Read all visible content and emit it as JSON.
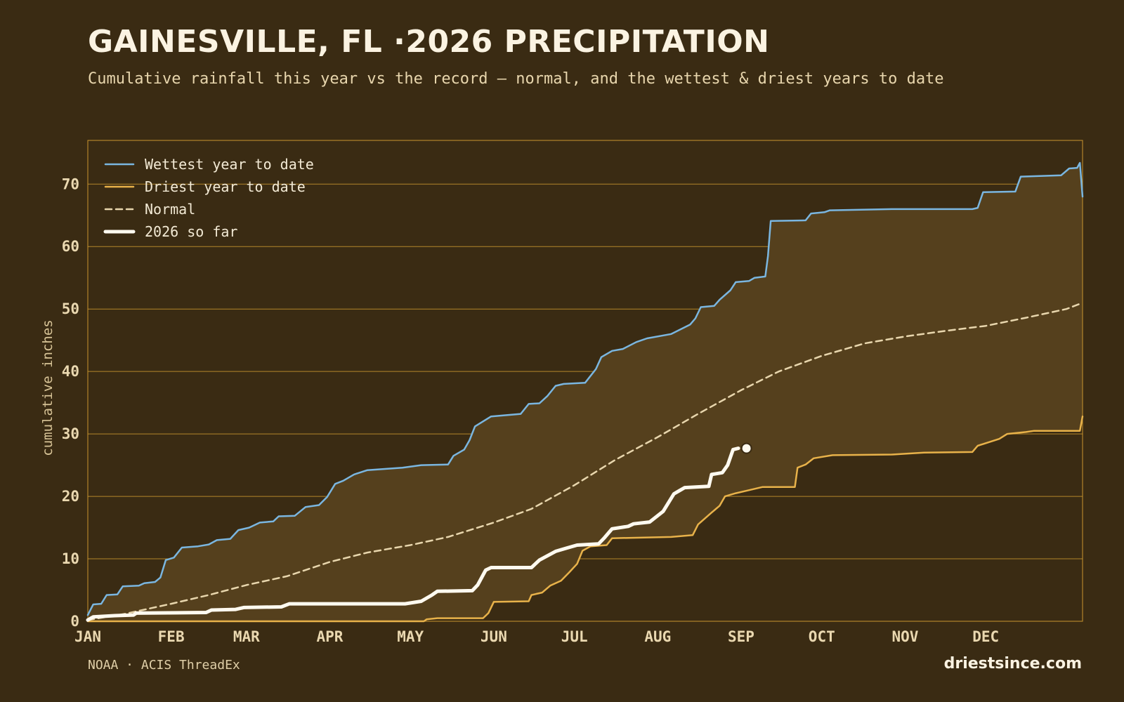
{
  "header": {
    "title": "GAINESVILLE, FL ·2026 PRECIPITATION",
    "subtitle": "Cumulative rainfall this year vs the record — normal, and the wettest & driest years to date"
  },
  "footer": {
    "source": "NOAA · ACIS ThreadEx",
    "brand": "driestsince.com"
  },
  "colors": {
    "background": "#3a2b13",
    "wettest": "#7ab6e0",
    "driest": "#e8b24a",
    "normal": "#e8d6ad",
    "current": "#fffaf0",
    "band_fill": "#55401d",
    "grid": "#c9962f"
  },
  "chart_data": {
    "type": "line",
    "ylabel": "cumulative inches",
    "xlabel": "",
    "ylim": [
      0,
      77
    ],
    "yticks": [
      0,
      10,
      20,
      30,
      40,
      50,
      60,
      70
    ],
    "x_unit": "day of year",
    "x_range": [
      1,
      366
    ],
    "month_ticks": [
      {
        "label": "JAN",
        "day": 1
      },
      {
        "label": "FEB",
        "day": 32
      },
      {
        "label": "MAR",
        "day": 60
      },
      {
        "label": "APR",
        "day": 91
      },
      {
        "label": "MAY",
        "day": 121
      },
      {
        "label": "JUN",
        "day": 152
      },
      {
        "label": "JUL",
        "day": 182
      },
      {
        "label": "AUG",
        "day": 213
      },
      {
        "label": "SEP",
        "day": 244
      },
      {
        "label": "OCT",
        "day": 274
      },
      {
        "label": "NOV",
        "day": 305
      },
      {
        "label": "DEC",
        "day": 335
      }
    ],
    "legend_position": "top-left",
    "grid": true,
    "fill_between": [
      "Driest year to date",
      "Wettest year to date"
    ],
    "series": [
      {
        "name": "Wettest year to date",
        "style": "solid",
        "points": [
          [
            1,
            1
          ],
          [
            3,
            2.7
          ],
          [
            6,
            2.8
          ],
          [
            8,
            4.2
          ],
          [
            12,
            4.3
          ],
          [
            14,
            5.6
          ],
          [
            20,
            5.7
          ],
          [
            22,
            6.1
          ],
          [
            26,
            6.3
          ],
          [
            28,
            7
          ],
          [
            30,
            9.8
          ],
          [
            33,
            10.2
          ],
          [
            36,
            11.8
          ],
          [
            42,
            12
          ],
          [
            46,
            12.3
          ],
          [
            49,
            13
          ],
          [
            54,
            13.2
          ],
          [
            57,
            14.6
          ],
          [
            61,
            15
          ],
          [
            65,
            15.8
          ],
          [
            70,
            16
          ],
          [
            72,
            16.8
          ],
          [
            78,
            16.9
          ],
          [
            82,
            18.3
          ],
          [
            87,
            18.6
          ],
          [
            90,
            19.9
          ],
          [
            93,
            22
          ],
          [
            96,
            22.5
          ],
          [
            100,
            23.5
          ],
          [
            105,
            24.2
          ],
          [
            118,
            24.6
          ],
          [
            125,
            25
          ],
          [
            135,
            25.1
          ],
          [
            137,
            26.5
          ],
          [
            141,
            27.5
          ],
          [
            143,
            29
          ],
          [
            145,
            31.2
          ],
          [
            151,
            32.8
          ],
          [
            162,
            33.2
          ],
          [
            165,
            34.8
          ],
          [
            169,
            34.9
          ],
          [
            172,
            36.1
          ],
          [
            175,
            37.7
          ],
          [
            178,
            38
          ],
          [
            186,
            38.2
          ],
          [
            190,
            40.4
          ],
          [
            192,
            42.3
          ],
          [
            196,
            43.3
          ],
          [
            200,
            43.6
          ],
          [
            205,
            44.7
          ],
          [
            209,
            45.3
          ],
          [
            218,
            46
          ],
          [
            225,
            47.5
          ],
          [
            227,
            48.5
          ],
          [
            229,
            50.3
          ],
          [
            234,
            50.5
          ],
          [
            236,
            51.5
          ],
          [
            240,
            53
          ],
          [
            242,
            54.3
          ],
          [
            247,
            54.5
          ],
          [
            249,
            55
          ],
          [
            253,
            55.2
          ],
          [
            254,
            58.5
          ],
          [
            255,
            64.1
          ],
          [
            268,
            64.2
          ],
          [
            270,
            65.3
          ],
          [
            275,
            65.5
          ],
          [
            277,
            65.8
          ],
          [
            300,
            66
          ],
          [
            330,
            66
          ],
          [
            332,
            66.2
          ],
          [
            334,
            68.7
          ],
          [
            346,
            68.8
          ],
          [
            348,
            71.2
          ],
          [
            363,
            71.4
          ],
          [
            366,
            72.5
          ],
          [
            369,
            72.6
          ],
          [
            370,
            73.4
          ],
          [
            371,
            68
          ]
        ]
      },
      {
        "name": "Driest year to date",
        "style": "solid",
        "points": [
          [
            1,
            0
          ],
          [
            126,
            0
          ],
          [
            127,
            0.3
          ],
          [
            131,
            0.5
          ],
          [
            148,
            0.5
          ],
          [
            150,
            1.3
          ],
          [
            152,
            3.1
          ],
          [
            165,
            3.2
          ],
          [
            166,
            4.2
          ],
          [
            170,
            4.6
          ],
          [
            173,
            5.7
          ],
          [
            177,
            6.5
          ],
          [
            180,
            7.8
          ],
          [
            183,
            9.2
          ],
          [
            185,
            11.3
          ],
          [
            188,
            12
          ],
          [
            194,
            12.2
          ],
          [
            196,
            13.3
          ],
          [
            218,
            13.5
          ],
          [
            226,
            13.8
          ],
          [
            228,
            15.5
          ],
          [
            233,
            17.4
          ],
          [
            236,
            18.5
          ],
          [
            238,
            20
          ],
          [
            242,
            20.5
          ],
          [
            247,
            21
          ],
          [
            252,
            21.5
          ],
          [
            264,
            21.5
          ],
          [
            265,
            24.6
          ],
          [
            268,
            25.1
          ],
          [
            271,
            26.1
          ],
          [
            278,
            26.6
          ],
          [
            300,
            26.7
          ],
          [
            312,
            27
          ],
          [
            330,
            27.1
          ],
          [
            332,
            28.1
          ],
          [
            340,
            29.2
          ],
          [
            343,
            30
          ],
          [
            350,
            30.3
          ],
          [
            353,
            30.5
          ],
          [
            370,
            30.5
          ],
          [
            371,
            32.8
          ]
        ]
      },
      {
        "name": "Normal",
        "style": "dashed",
        "points": [
          [
            1,
            0.2
          ],
          [
            15,
            1.2
          ],
          [
            32,
            2.8
          ],
          [
            46,
            4.2
          ],
          [
            60,
            5.8
          ],
          [
            75,
            7.2
          ],
          [
            91,
            9.5
          ],
          [
            105,
            11
          ],
          [
            121,
            12.2
          ],
          [
            135,
            13.5
          ],
          [
            152,
            15.8
          ],
          [
            166,
            18
          ],
          [
            182,
            21.8
          ],
          [
            197,
            25.8
          ],
          [
            213,
            29.5
          ],
          [
            228,
            33.2
          ],
          [
            244,
            37
          ],
          [
            258,
            40
          ],
          [
            274,
            42.5
          ],
          [
            290,
            44.5
          ],
          [
            305,
            45.6
          ],
          [
            320,
            46.5
          ],
          [
            335,
            47.3
          ],
          [
            350,
            48.6
          ],
          [
            365,
            50
          ],
          [
            371,
            51
          ]
        ]
      },
      {
        "name": "2026 so far",
        "style": "bold",
        "points": [
          [
            1,
            0.2
          ],
          [
            3,
            0.7
          ],
          [
            11,
            0.9
          ],
          [
            18,
            1.0
          ],
          [
            19,
            1.3
          ],
          [
            45,
            1.4
          ],
          [
            47,
            1.8
          ],
          [
            56,
            1.9
          ],
          [
            59,
            2.2
          ],
          [
            73,
            2.3
          ],
          [
            76,
            2.8
          ],
          [
            119,
            2.8
          ],
          [
            125,
            3.2
          ],
          [
            129,
            4.2
          ],
          [
            131,
            4.8
          ],
          [
            144,
            4.9
          ],
          [
            146,
            5.8
          ],
          [
            149,
            8.2
          ],
          [
            151,
            8.6
          ],
          [
            166,
            8.6
          ],
          [
            169,
            9.8
          ],
          [
            175,
            11.2
          ],
          [
            179,
            11.7
          ],
          [
            183,
            12.2
          ],
          [
            191,
            12.4
          ],
          [
            193,
            13.3
          ],
          [
            196,
            14.8
          ],
          [
            202,
            15.2
          ],
          [
            204,
            15.6
          ],
          [
            210,
            15.9
          ],
          [
            215,
            17.6
          ],
          [
            219,
            20.4
          ],
          [
            221,
            20.9
          ],
          [
            223,
            21.4
          ],
          [
            232,
            21.6
          ],
          [
            233,
            23.5
          ],
          [
            237,
            23.8
          ],
          [
            239,
            25
          ],
          [
            241,
            27.5
          ],
          [
            243,
            27.7
          ]
        ]
      }
    ]
  }
}
